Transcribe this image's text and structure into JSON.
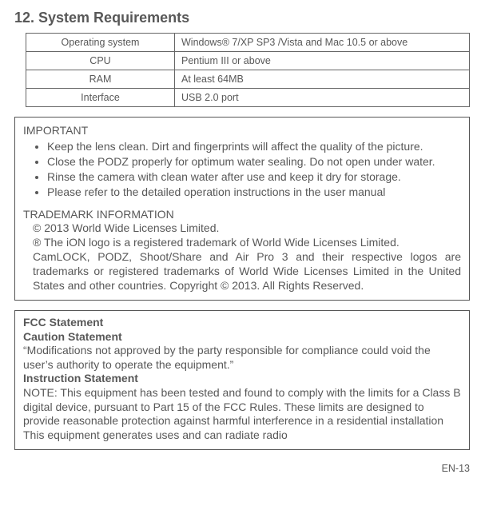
{
  "section": {
    "title": "12. System Requirements"
  },
  "table": {
    "rows": [
      {
        "label": "Operating system",
        "value": "Windows® 7/XP SP3 /Vista and Mac 10.5 or above"
      },
      {
        "label": "CPU",
        "value": "Pentium III or above"
      },
      {
        "label": "RAM",
        "value": "At least 64MB"
      },
      {
        "label": "Interface",
        "value": "USB 2.0 port"
      }
    ]
  },
  "important": {
    "title": "IMPORTANT",
    "items": [
      "Keep the lens clean. Dirt and fingerprints will affect the quality of the picture.",
      "Close the PODZ properly for optimum water sealing. Do not open under water.",
      "Rinse the camera with clean water after use and keep it dry for storage.",
      "Please refer to the detailed operation instructions in the user manual"
    ]
  },
  "trademark": {
    "title": "TRADEMARK INFORMATION",
    "line1": "© 2013 World Wide Licenses Limited.",
    "line2": "® The iON logo is a registered trademark of World Wide Licenses Limited.",
    "line3": "CamLOCK, PODZ, Shoot/Share and Air Pro 3 and their respective logos are trademarks or registered trademarks of World Wide Licenses Limited in the United States and other countries.   Copyright © 2013. All Rights Reserved."
  },
  "fcc": {
    "h1": "FCC Statement",
    "h2": "Caution Statement",
    "p1": "“Modifications not approved by the party responsible for compliance could void the user’s authority to operate the equipment.”",
    "h3": "Instruction Statement",
    "p2": "NOTE: This equipment has been tested and found to comply with the limits for a Class B digital device, pursuant to Part 15 of the FCC Rules. These limits are designed to provide reasonable protection against harmful interference in a residential installation  This equipment generates  uses and can radiate radio"
  },
  "footer": {
    "page": "EN-13"
  }
}
